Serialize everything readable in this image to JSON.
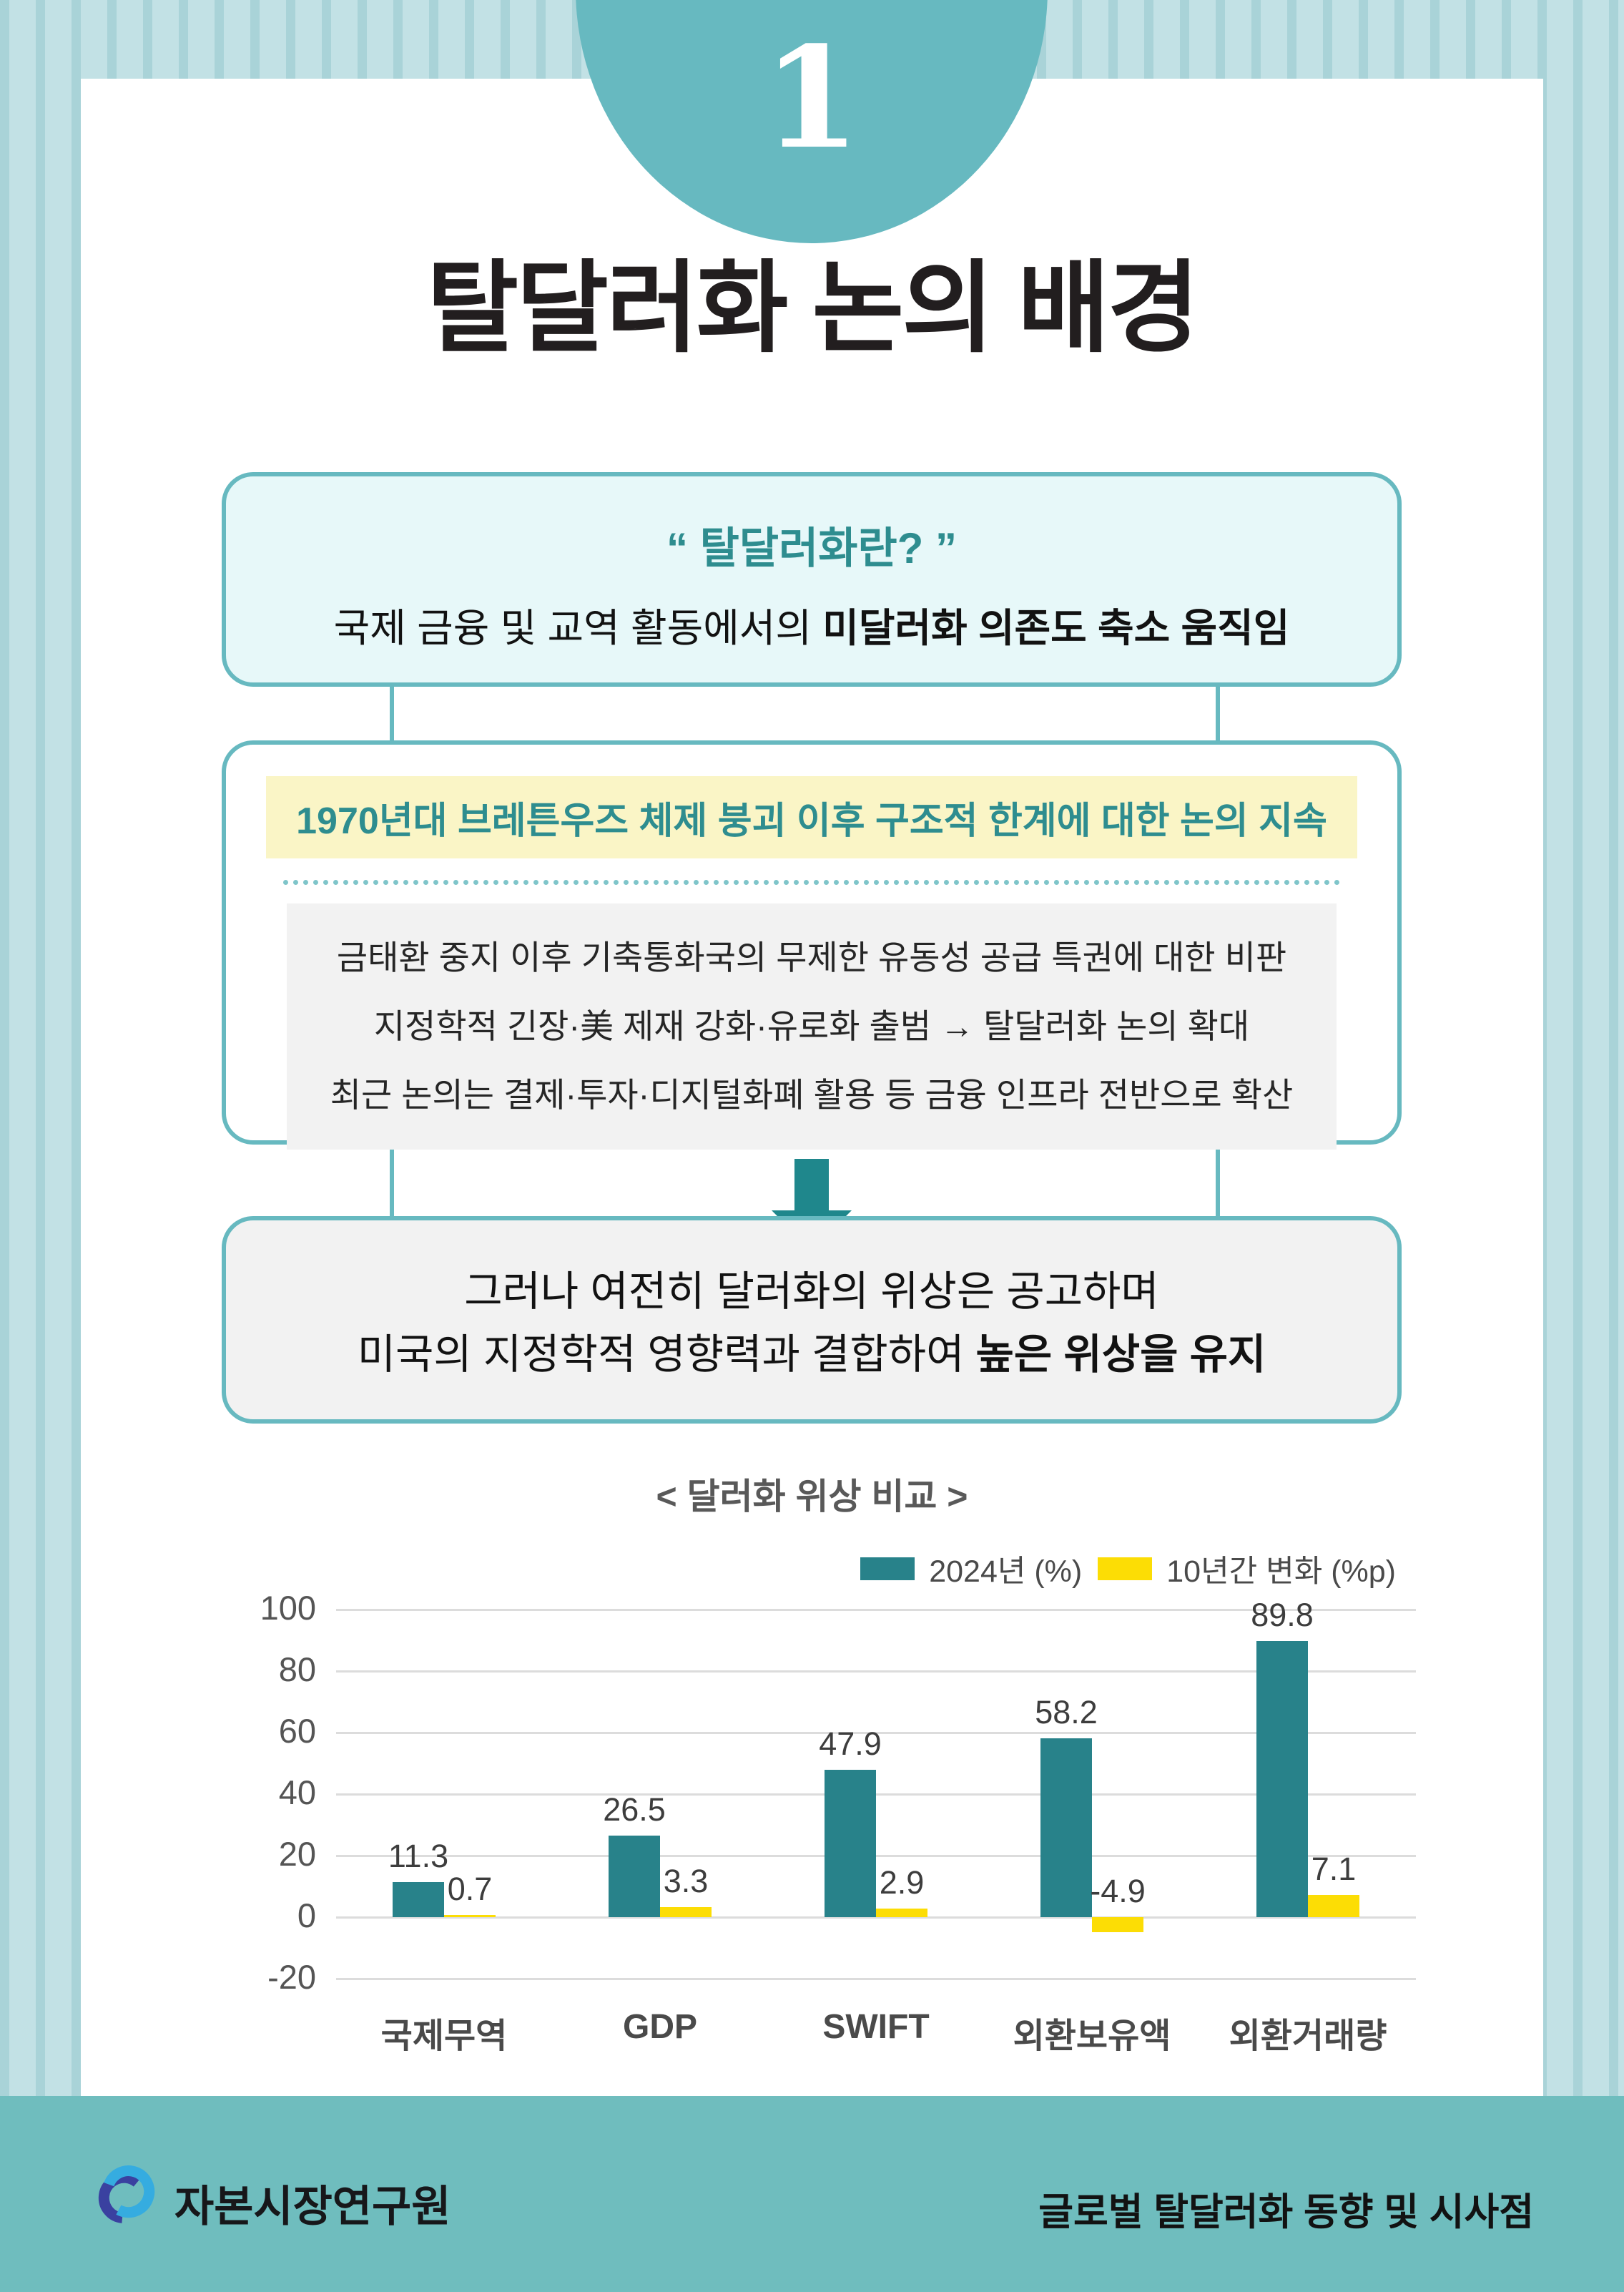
{
  "header": {
    "section_number": "1",
    "title": "탈달러화 논의 배경"
  },
  "definition_box": {
    "quote_title": "“ 탈달러화란? ”",
    "desc_prefix": "국제 금융 및 교역 활동에서의 ",
    "desc_bold": "미달러화 의존도 축소 움직임"
  },
  "history_box": {
    "heading": "1970년대 브레튼우즈 체제 붕괴 이후 구조적 한계에 대한 논의 지속",
    "points": [
      "금태환 중지 이후 기축통화국의 무제한 유동성 공급 특권에 대한 비판",
      "지정학적 긴장·美 제재 강화·유로화 출범 → 탈달러화 논의 확대",
      "최근 논의는 결제·투자·디지털화폐 활용 등 금융 인프라 전반으로 확산"
    ]
  },
  "conclusion_box": {
    "line1": "그러나 여전히 달러화의 위상은 공고하며",
    "line2_prefix": "미국의 지정학적 영향력과 결합하여 ",
    "line2_bold": "높은 위상을 유지"
  },
  "chart_data": {
    "type": "bar",
    "title": "< 달러화 위상 비교 >",
    "categories": [
      "국제무역",
      "GDP",
      "SWIFT",
      "외환보유액",
      "외환거래량"
    ],
    "series": [
      {
        "name": "2024년 (%)",
        "color": "#28828a",
        "values": [
          11.3,
          26.5,
          47.9,
          58.2,
          89.8
        ]
      },
      {
        "name": "10년간 변화 (%p)",
        "color": "#fcdd05",
        "values": [
          0.7,
          3.3,
          2.9,
          -4.9,
          7.1
        ]
      }
    ],
    "yticks": [
      100,
      80,
      60,
      40,
      20,
      0,
      -20
    ],
    "ylim": [
      -20,
      100
    ],
    "grid": true,
    "legend_position": "top-right",
    "xlabel": "",
    "ylabel": ""
  },
  "footer": {
    "org_name": "자본시장연구원",
    "doc_title": "글로벌 탈달러화 동향 및 시사점"
  },
  "colors": {
    "teal_accent": "#67b9c0",
    "teal_dark": "#1f878c",
    "teal_text": "#2e8d8f",
    "bar_teal": "#28828a",
    "bar_yellow": "#fcdd05",
    "highlight_yellow": "#faf5c6",
    "footer_bg": "#6fbdbe",
    "logo_light_blue": "#35ace0",
    "logo_dark_blue": "#3a41a0"
  }
}
